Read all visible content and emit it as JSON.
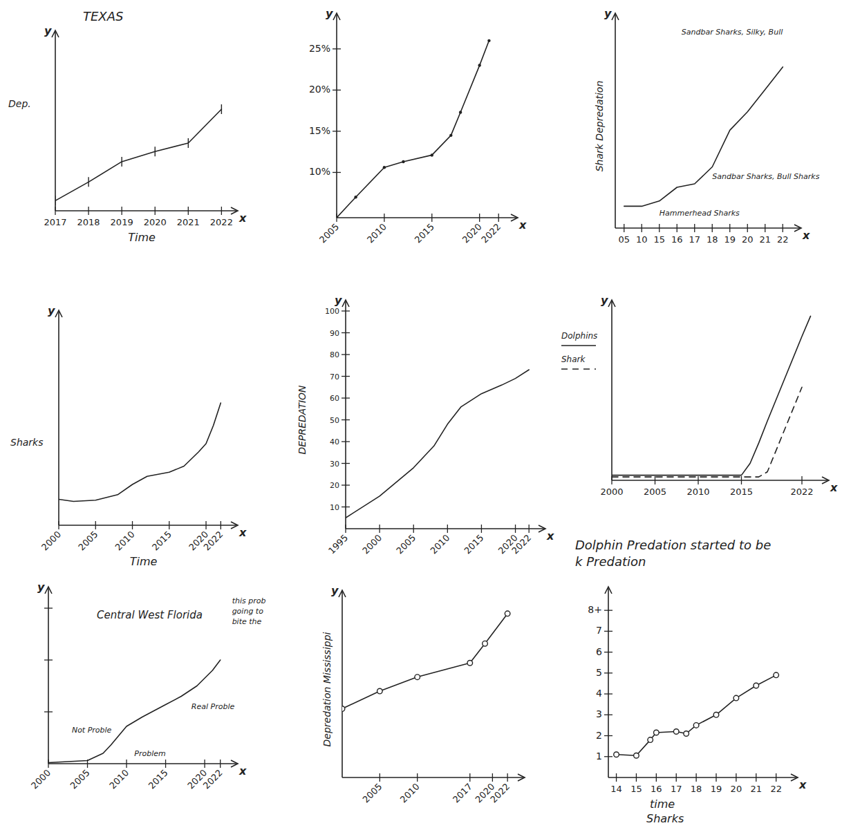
{
  "chart_data": [
    {
      "type": "line",
      "title": "TEXAS",
      "x_label": "Time",
      "y_label": "Dep.",
      "axis_names": {
        "x": "x",
        "y": "y"
      },
      "x": [
        2017,
        2018,
        2019,
        2020,
        2021,
        2022
      ],
      "series": [
        {
          "color": "#222222",
          "marker": "tick",
          "values": [
            0.6,
            1.7,
            2.9,
            3.5,
            4.0,
            6.0
          ]
        }
      ],
      "xlim": [
        2017,
        2022.2
      ],
      "xticks": [
        2017,
        2018,
        2019,
        2020,
        2021,
        2022
      ],
      "ylim": [
        0,
        10
      ],
      "tick_labels": "x"
    },
    {
      "type": "line",
      "axis_names": {
        "x": "x",
        "y": "y"
      },
      "x": [
        2005,
        2007,
        2010,
        2012,
        2015,
        2017,
        2018,
        2020,
        2021
      ],
      "series": [
        {
          "color": "#222222",
          "marker": "dot",
          "values": [
            4.5,
            7,
            10.6,
            11.3,
            12.1,
            14.5,
            17.3,
            23,
            26
          ]
        }
      ],
      "xlim": [
        2005,
        2023
      ],
      "xticks": [
        2005,
        2010,
        2015,
        2020,
        2022
      ],
      "ylim": [
        4.5,
        28
      ],
      "yticks": [
        {
          "value": 10,
          "label": "10%"
        },
        {
          "value": 15,
          "label": "15%"
        },
        {
          "value": 20,
          "label": "20%"
        },
        {
          "value": 25,
          "label": "25%"
        }
      ]
    },
    {
      "type": "line",
      "y_label": "Shark Depredation",
      "axis_names": {
        "x": "x",
        "y": "y"
      },
      "categories": [
        "05",
        "10",
        "15",
        "16",
        "17",
        "18",
        "19",
        "20",
        "21",
        "22"
      ],
      "series": [
        {
          "color": "#222222",
          "values": [
            1.07,
            1.07,
            1.33,
            2.0,
            2.17,
            3.0,
            4.8,
            5.7,
            6.8,
            7.9
          ]
        }
      ],
      "ylim": [
        0,
        10
      ],
      "tick_labels": "x",
      "annotations": [
        {
          "text": "Hammerhead Sharks",
          "x": "15",
          "y": 0.6
        },
        {
          "text": "Sandbar Sharks, Bull Sharks",
          "x": "18",
          "y": 2.4
        },
        {
          "text": "Sandbar Sharks, Silky, Bull",
          "x": "22",
          "y": 9.5
        }
      ]
    },
    {
      "type": "line",
      "x_label": "Time",
      "y_label": "Sharks",
      "axis_names": {
        "x": "x",
        "y": "y"
      },
      "x": [
        2000,
        2002,
        2005,
        2008,
        2010,
        2012,
        2015,
        2017,
        2019,
        2020,
        2021,
        2022
      ],
      "series": [
        {
          "color": "#222222",
          "values": [
            1.27,
            1.17,
            1.23,
            1.5,
            2.0,
            2.4,
            2.6,
            2.9,
            3.6,
            4.0,
            4.9,
            6.0
          ]
        }
      ],
      "xlim": [
        2000,
        2023
      ],
      "xticks": [
        2000,
        2005,
        2010,
        2015,
        2020,
        2022
      ],
      "ylim": [
        0,
        10
      ],
      "tick_labels": "x"
    },
    {
      "type": "line",
      "y_label": "DEPREDATION",
      "axis_names": {
        "x": "x",
        "y": "y"
      },
      "x": [
        1995,
        2000,
        2005,
        2008,
        2010,
        2012,
        2015,
        2018,
        2020,
        2022
      ],
      "series": [
        {
          "color": "#222222",
          "values": [
            5,
            15,
            28,
            38,
            48,
            56,
            62,
            66,
            69,
            73
          ]
        }
      ],
      "xlim": [
        1995,
        2023
      ],
      "xticks": [
        1995,
        2000,
        2005,
        2010,
        2015,
        2020,
        2022
      ],
      "ylim": [
        0,
        100
      ],
      "yticks": [
        10,
        20,
        30,
        40,
        50,
        60,
        70,
        80,
        90,
        100
      ]
    },
    {
      "type": "line",
      "axis_names": {
        "x": "x",
        "y": "y"
      },
      "legend": "left",
      "x": [
        2000,
        2005,
        2010,
        2015,
        2016,
        2017,
        2018,
        2020,
        2022,
        2023
      ],
      "series": [
        {
          "name": "Dolphins",
          "color": "#222222",
          "line_style": "solid",
          "values": [
            0.3,
            0.3,
            0.3,
            0.3,
            1.0,
            2.2,
            3.5,
            6.0,
            8.5,
            9.7
          ]
        },
        {
          "name": "Shark",
          "color": "#222222",
          "line_style": "dashed",
          "values": [
            0.2,
            0.2,
            0.2,
            0.2,
            0.2,
            0.2,
            0.5,
            3.0,
            5.5,
            null
          ]
        }
      ],
      "xlim": [
        2000,
        2024
      ],
      "xticks": [
        2000,
        2005,
        2010,
        2015,
        2022
      ],
      "ylim": [
        0,
        10
      ],
      "tick_labels": "x",
      "caption": [
        "Dolphin Predation started to be",
        "k Predation"
      ]
    },
    {
      "type": "line",
      "title": "Central West Florida",
      "axis_names": {
        "x": "x",
        "y": "y"
      },
      "x": [
        2000,
        2005,
        2007,
        2008,
        2010,
        2012,
        2015,
        2017,
        2019,
        2021,
        2022
      ],
      "series": [
        {
          "color": "#222222",
          "values": [
            0.02,
            0.06,
            0.2,
            0.36,
            0.72,
            0.9,
            1.14,
            1.3,
            1.5,
            1.8,
            2.0
          ]
        }
      ],
      "xlim": [
        2000,
        2023
      ],
      "xticks": [
        2000,
        2005,
        2010,
        2015,
        2020,
        2022
      ],
      "ylim": [
        0,
        3.2
      ],
      "yticks": [
        1,
        2,
        3
      ],
      "tick_labels": "x",
      "annotations": [
        {
          "text": "Not Proble",
          "x": 2003,
          "y": 0.6
        },
        {
          "text": "Problem",
          "x": 2011,
          "y": 0.15
        },
        {
          "text": "Real Proble",
          "x": 2018.3,
          "y": 1.05
        },
        {
          "text": "this prob going to bite the",
          "x": 2023.5,
          "y": 3.1
        }
      ]
    },
    {
      "type": "line",
      "y_label": "Depredation Mississippi",
      "axis_names": {
        "y": "y"
      },
      "x": [
        2000,
        2005,
        2010,
        2017,
        2019,
        2022
      ],
      "series": [
        {
          "color": "#222222",
          "marker": "circle",
          "values": [
            3.9,
            4.9,
            5.7,
            6.5,
            7.6,
            9.3
          ]
        }
      ],
      "xlim": [
        2000,
        2023
      ],
      "xticks": [
        2005,
        2010,
        2017,
        2020,
        2022
      ],
      "ylim": [
        0,
        10
      ],
      "tick_labels": "x"
    },
    {
      "type": "line",
      "x_label": "time",
      "axis_names": {
        "x": "x"
      },
      "caption": [
        "Sharks"
      ],
      "x": [
        14,
        15,
        15.7,
        16,
        17,
        17.5,
        18,
        19,
        20,
        21,
        22
      ],
      "series": [
        {
          "color": "#222222",
          "marker": "circle",
          "values": [
            1.1,
            1.05,
            1.8,
            2.15,
            2.2,
            2.1,
            2.5,
            3.0,
            3.8,
            4.4,
            4.9
          ]
        }
      ],
      "xlim": [
        13.6,
        22.6
      ],
      "xticks": [
        14,
        15,
        16,
        17,
        18,
        19,
        20,
        21,
        22
      ],
      "ylim": [
        0,
        8.6
      ],
      "yticks": [
        1,
        2,
        3,
        4,
        5,
        6,
        7,
        {
          "value": 8,
          "label": "8+"
        }
      ]
    }
  ]
}
